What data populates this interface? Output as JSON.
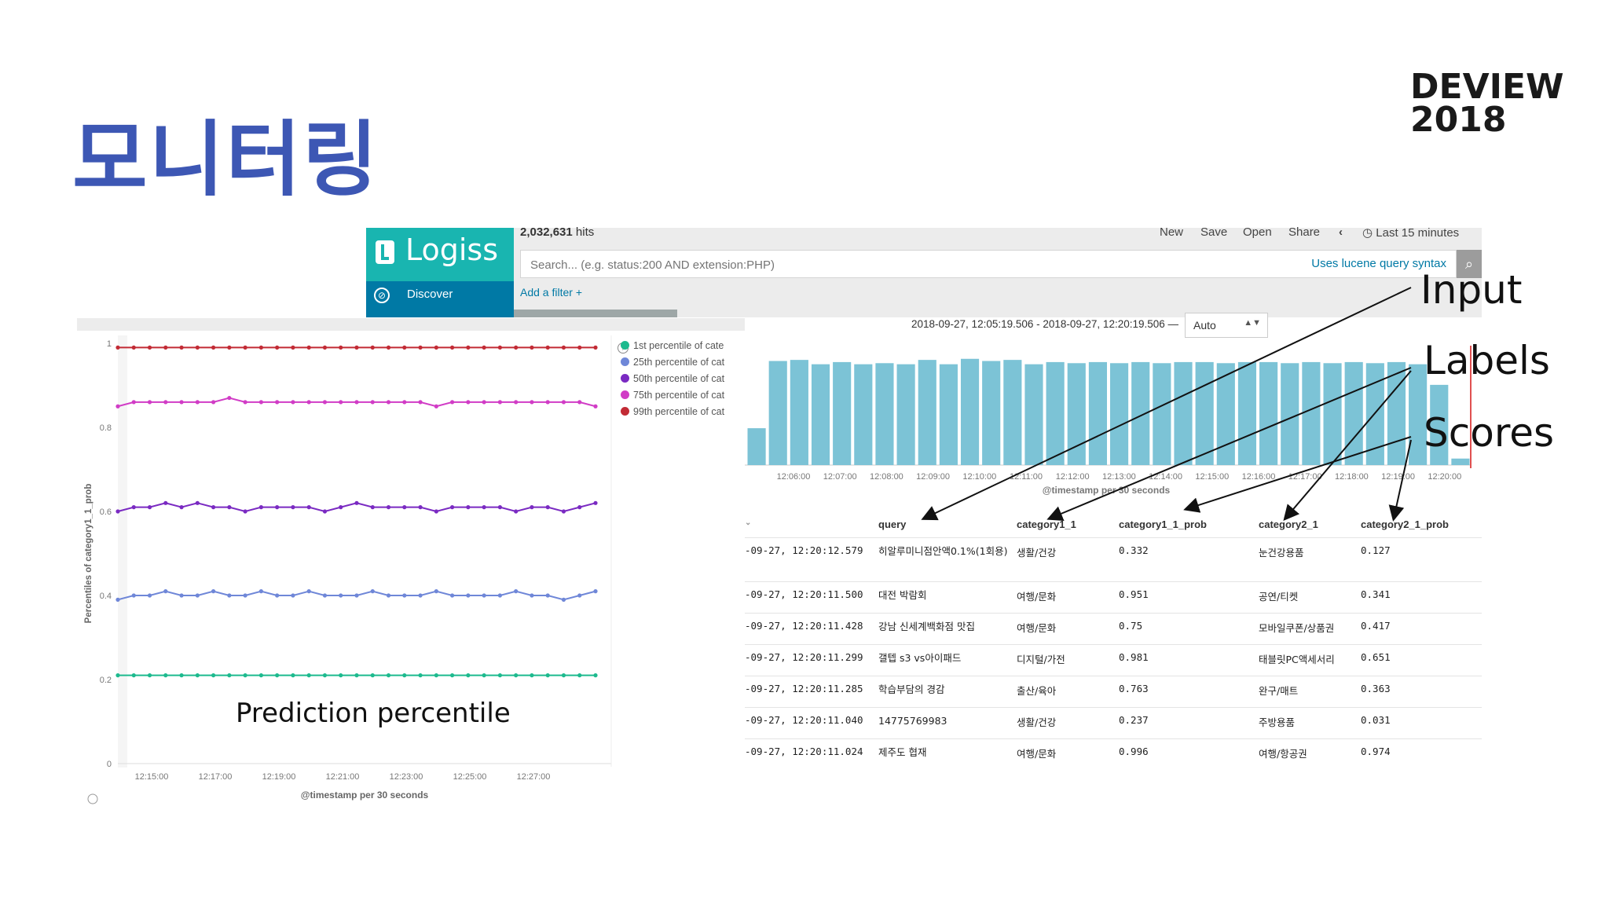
{
  "slide": {
    "title": "모니터링",
    "brand_line1": "DEVIEW",
    "brand_line2": "2018"
  },
  "kibana": {
    "logo_text": "Logiss",
    "nav_discover": "Discover",
    "hits_count": "2,032,631",
    "hits_suffix": "hits",
    "menu": [
      "New",
      "Save",
      "Open",
      "Share",
      "‹",
      "Last 15 minutes"
    ],
    "search_placeholder": "Search... (e.g. status:200 AND extension:PHP)",
    "lucene_link": "Uses lucene query syntax",
    "add_filter": "Add a filter +",
    "date_range": "2018-09-27, 12:05:19.506 - 2018-09-27, 12:20:19.506 —",
    "interval": "Auto"
  },
  "left_chart": {
    "ylabel": "Percentiles of category1_1_prob",
    "xlabel": "@timestamp per 30 seconds",
    "yticks": [
      "0",
      "0.2",
      "0.4",
      "0.6",
      "0.8",
      "1"
    ],
    "xticks": [
      "12:15:00",
      "12:17:00",
      "12:19:00",
      "12:21:00",
      "12:23:00",
      "12:25:00",
      "12:27:00"
    ],
    "legend": [
      {
        "label": "1st percentile of cate",
        "color": "#1dba8e"
      },
      {
        "label": "25th percentile of cat",
        "color": "#6f87d8"
      },
      {
        "label": "50th percentile of cat",
        "color": "#7a2ac2"
      },
      {
        "label": "75th percentile of cat",
        "color": "#d13cc6"
      },
      {
        "label": "99th percentile of cat",
        "color": "#c22b35"
      }
    ]
  },
  "chart_data": [
    {
      "type": "line",
      "xlabel": "@timestamp per 30 seconds",
      "ylabel": "Percentiles of category1_1_prob",
      "ylim": [
        0,
        1
      ],
      "x_range": [
        "12:14:00",
        "12:29:00"
      ],
      "series": [
        {
          "name": "1st percentile of cate",
          "color": "#1dba8e",
          "values": [
            0.21,
            0.21,
            0.21,
            0.21,
            0.21,
            0.21,
            0.21,
            0.21,
            0.21,
            0.21,
            0.21,
            0.21,
            0.21,
            0.21,
            0.21,
            0.21,
            0.21,
            0.21,
            0.21,
            0.21,
            0.21,
            0.21,
            0.21,
            0.21,
            0.21,
            0.21,
            0.21,
            0.21,
            0.21,
            0.21,
            0.21
          ]
        },
        {
          "name": "25th percentile of cat",
          "color": "#6f87d8",
          "values": [
            0.39,
            0.4,
            0.4,
            0.41,
            0.4,
            0.4,
            0.41,
            0.4,
            0.4,
            0.41,
            0.4,
            0.4,
            0.41,
            0.4,
            0.4,
            0.4,
            0.41,
            0.4,
            0.4,
            0.4,
            0.41,
            0.4,
            0.4,
            0.4,
            0.4,
            0.41,
            0.4,
            0.4,
            0.39,
            0.4,
            0.41
          ]
        },
        {
          "name": "50th percentile of cat",
          "color": "#7a2ac2",
          "values": [
            0.6,
            0.61,
            0.61,
            0.62,
            0.61,
            0.62,
            0.61,
            0.61,
            0.6,
            0.61,
            0.61,
            0.61,
            0.61,
            0.6,
            0.61,
            0.62,
            0.61,
            0.61,
            0.61,
            0.61,
            0.6,
            0.61,
            0.61,
            0.61,
            0.61,
            0.6,
            0.61,
            0.61,
            0.6,
            0.61,
            0.62
          ]
        },
        {
          "name": "75th percentile of cat",
          "color": "#d13cc6",
          "values": [
            0.85,
            0.86,
            0.86,
            0.86,
            0.86,
            0.86,
            0.86,
            0.87,
            0.86,
            0.86,
            0.86,
            0.86,
            0.86,
            0.86,
            0.86,
            0.86,
            0.86,
            0.86,
            0.86,
            0.86,
            0.85,
            0.86,
            0.86,
            0.86,
            0.86,
            0.86,
            0.86,
            0.86,
            0.86,
            0.86,
            0.85
          ]
        },
        {
          "name": "99th percentile of cat",
          "color": "#c22b35",
          "values": [
            0.99,
            0.99,
            0.99,
            0.99,
            0.99,
            0.99,
            0.99,
            0.99,
            0.99,
            0.99,
            0.99,
            0.99,
            0.99,
            0.99,
            0.99,
            0.99,
            0.99,
            0.99,
            0.99,
            0.99,
            0.99,
            0.99,
            0.99,
            0.99,
            0.99,
            0.99,
            0.99,
            0.99,
            0.99,
            0.99,
            0.99
          ]
        }
      ]
    },
    {
      "type": "bar",
      "xlabel": "@timestamp per 30 seconds",
      "xticks": [
        "12:06:00",
        "12:07:00",
        "12:08:00",
        "12:09:00",
        "12:10:00",
        "12:11:00",
        "12:12:00",
        "12:13:00",
        "12:14:00",
        "12:15:00",
        "12:16:00",
        "12:17:00",
        "12:18:00",
        "12:19:00",
        "12:20:00"
      ],
      "values": [
        34,
        96,
        97,
        93,
        95,
        93,
        94,
        93,
        97,
        93,
        98,
        96,
        97,
        93,
        95,
        94,
        95,
        94,
        95,
        94,
        95,
        95,
        94,
        95,
        95,
        94,
        95,
        94,
        95,
        94,
        95,
        93,
        74,
        6
      ],
      "color": "#7cc3d6"
    }
  ],
  "table": {
    "headers": [
      "query",
      "category1_1",
      "category1_1_prob",
      "category2_1",
      "category2_1_prob"
    ],
    "rows": [
      {
        "time": "-09-27, 12:20:12.579",
        "query": "히알루미니점안액0.1%(1회용)",
        "c1": "생활/건강",
        "p1": "0.332",
        "c2": "눈건강용품",
        "p2": "0.127"
      },
      {
        "time": "-09-27, 12:20:11.500",
        "query": "대전 박람회",
        "c1": "여행/문화",
        "p1": "0.951",
        "c2": "공연/티켓",
        "p2": "0.341"
      },
      {
        "time": "-09-27, 12:20:11.428",
        "query": "강남 신세계백화점 맛집",
        "c1": "여행/문화",
        "p1": "0.75",
        "c2": "모바일쿠폰/상품권",
        "p2": "0.417"
      },
      {
        "time": "-09-27, 12:20:11.299",
        "query": "갤텝 s3 vs아이패드",
        "c1": "디지털/가전",
        "p1": "0.981",
        "c2": "태블릿PC액세서리",
        "p2": "0.651"
      },
      {
        "time": "-09-27, 12:20:11.285",
        "query": "학습부담의 경감",
        "c1": "출산/육아",
        "p1": "0.763",
        "c2": "완구/매트",
        "p2": "0.363"
      },
      {
        "time": "-09-27, 12:20:11.040",
        "query": "14775769983",
        "c1": "생활/건강",
        "p1": "0.237",
        "c2": "주방용품",
        "p2": "0.031"
      },
      {
        "time": "-09-27, 12:20:11.024",
        "query": "제주도 협재",
        "c1": "여행/문화",
        "p1": "0.996",
        "c2": "여행/항공권",
        "p2": "0.974"
      }
    ]
  },
  "annotations": {
    "input": "Input",
    "labels": "Labels",
    "scores": "Scores",
    "prediction": "Prediction percentile"
  }
}
